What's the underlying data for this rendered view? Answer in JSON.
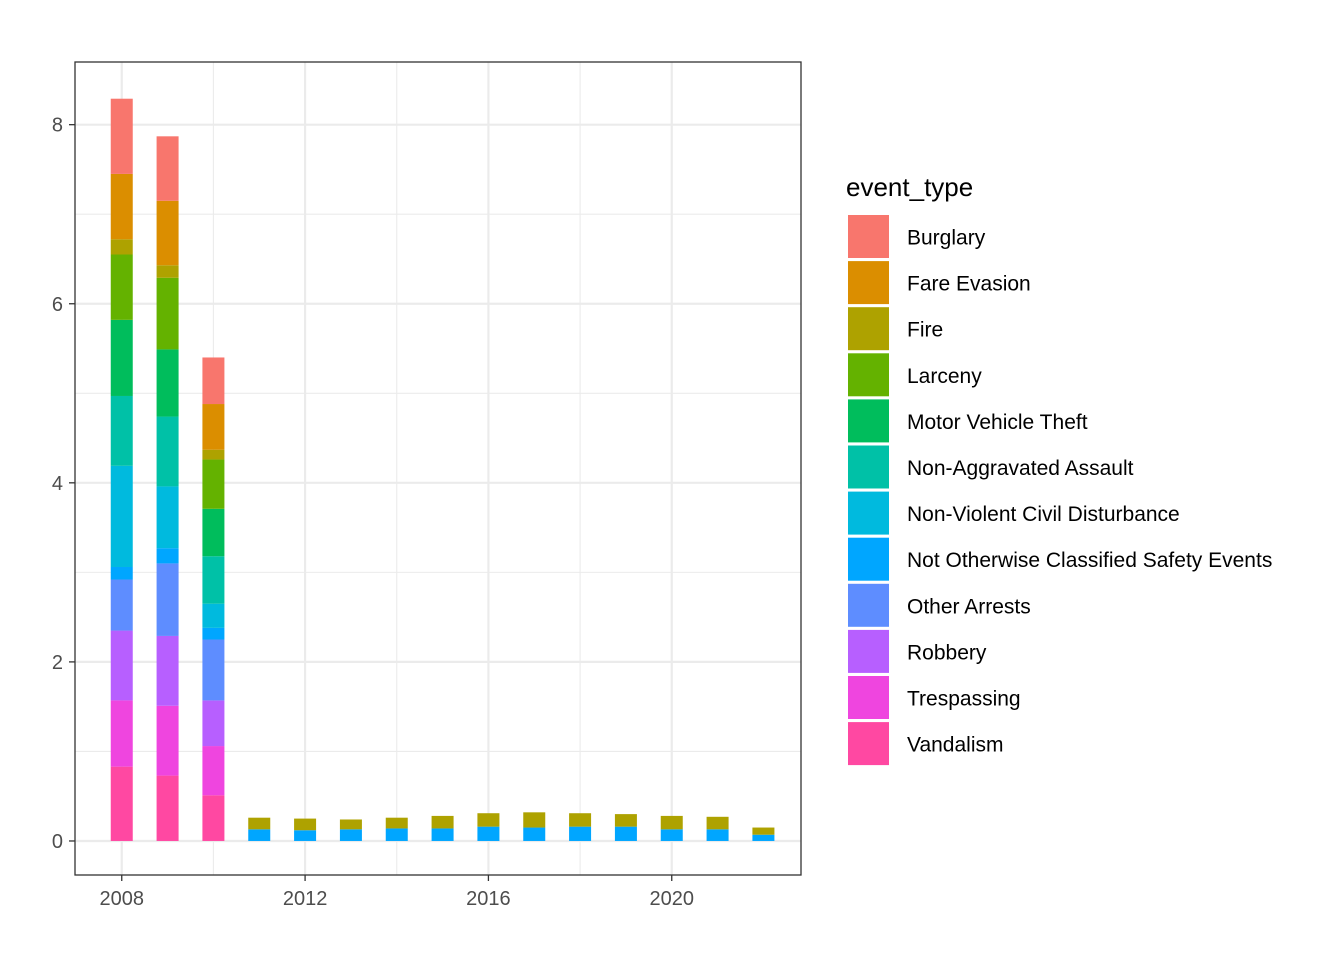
{
  "chart_data": {
    "type": "bar",
    "stacked": true,
    "title": "",
    "xlabel": "",
    "ylabel": "",
    "x": [
      2008,
      2009,
      2010,
      2011,
      2012,
      2013,
      2014,
      2015,
      2016,
      2017,
      2018,
      2019,
      2020,
      2021,
      2022
    ],
    "xlim": [
      2006.98,
      2022.82
    ],
    "ylim": [
      -0.38,
      8.7
    ],
    "x_ticks": [
      2008,
      2012,
      2016,
      2020
    ],
    "y_ticks": [
      0,
      2,
      4,
      6,
      8
    ],
    "grid": true,
    "legend": {
      "title": "event_type",
      "position": "right"
    },
    "series": [
      {
        "name": "Burglary",
        "color": "#F8766D",
        "values": [
          0.84,
          0.72,
          0.52,
          null,
          null,
          null,
          null,
          null,
          null,
          null,
          null,
          null,
          null,
          null,
          null
        ]
      },
      {
        "name": "Fare Evasion",
        "color": "#DB8E00",
        "values": [
          0.73,
          0.72,
          0.51,
          null,
          null,
          null,
          null,
          null,
          null,
          null,
          null,
          null,
          null,
          null,
          null
        ]
      },
      {
        "name": "Fire",
        "color": "#AEA200",
        "values": [
          0.17,
          0.14,
          0.11,
          0.13,
          0.13,
          0.11,
          0.12,
          0.14,
          0.15,
          0.17,
          0.15,
          0.14,
          0.15,
          0.14,
          0.08
        ]
      },
      {
        "name": "Larceny",
        "color": "#64B200",
        "values": [
          0.73,
          0.8,
          0.55,
          null,
          null,
          null,
          null,
          null,
          null,
          null,
          null,
          null,
          null,
          null,
          null
        ]
      },
      {
        "name": "Motor Vehicle Theft",
        "color": "#00BD5C",
        "values": [
          0.85,
          0.75,
          0.53,
          null,
          null,
          null,
          null,
          null,
          null,
          null,
          null,
          null,
          null,
          null,
          null
        ]
      },
      {
        "name": "Non-Aggravated Assault",
        "color": "#00C1A7",
        "values": [
          0.78,
          0.78,
          0.53,
          null,
          null,
          null,
          null,
          null,
          null,
          null,
          null,
          null,
          null,
          null,
          null
        ]
      },
      {
        "name": "Non-Violent Civil Disturbance",
        "color": "#00BADE",
        "values": [
          1.13,
          0.69,
          0.27,
          null,
          null,
          null,
          null,
          null,
          null,
          null,
          null,
          null,
          null,
          null,
          null
        ]
      },
      {
        "name": "Not Otherwise Classified Safety Events",
        "color": "#00A6FF",
        "values": [
          0.14,
          0.17,
          0.13,
          0.13,
          0.12,
          0.13,
          0.14,
          0.14,
          0.16,
          0.15,
          0.16,
          0.16,
          0.13,
          0.13,
          0.07
        ]
      },
      {
        "name": "Other Arrests",
        "color": "#B385FF",
        "values": [
          0.57,
          0.81,
          0.68,
          null,
          null,
          null,
          null,
          null,
          null,
          null,
          null,
          null,
          null,
          null,
          null
        ]
      },
      {
        "name": "Robbery",
        "color": "#EF67EB",
        "values": [
          0.78,
          0.78,
          0.51,
          null,
          null,
          null,
          null,
          null,
          null,
          null,
          null,
          null,
          null,
          null,
          null
        ]
      },
      {
        "name": "Trespassing",
        "color": "#FF63B6",
        "values": [
          0.74,
          0.78,
          0.55,
          null,
          null,
          null,
          null,
          null,
          null,
          null,
          null,
          null,
          null,
          null,
          null
        ]
      },
      {
        "name": "Vandalism",
        "color": "#FF6C91",
        "values": [
          0.83,
          0.73,
          0.51,
          null,
          null,
          null,
          null,
          null,
          null,
          null,
          null,
          null,
          null,
          null,
          null
        ]
      }
    ],
    "render_colors": {
      "Burglary": "#F8766D",
      "Fare Evasion": "#DB8E00",
      "Fire": "#AEA200",
      "Larceny": "#64B200",
      "Motor Vehicle Theft": "#00BD5C",
      "Non-Aggravated Assault": "#00C1A7",
      "Non-Violent Civil Disturbance": "#00BADE",
      "Not Otherwise Classified Safety Events": "#00A6FF",
      "Other Arrests": "#5E8DFF",
      "Robbery": "#B75FFF",
      "Trespassing": "#EF45DF",
      "Vandalism": "#FF48A2"
    }
  }
}
